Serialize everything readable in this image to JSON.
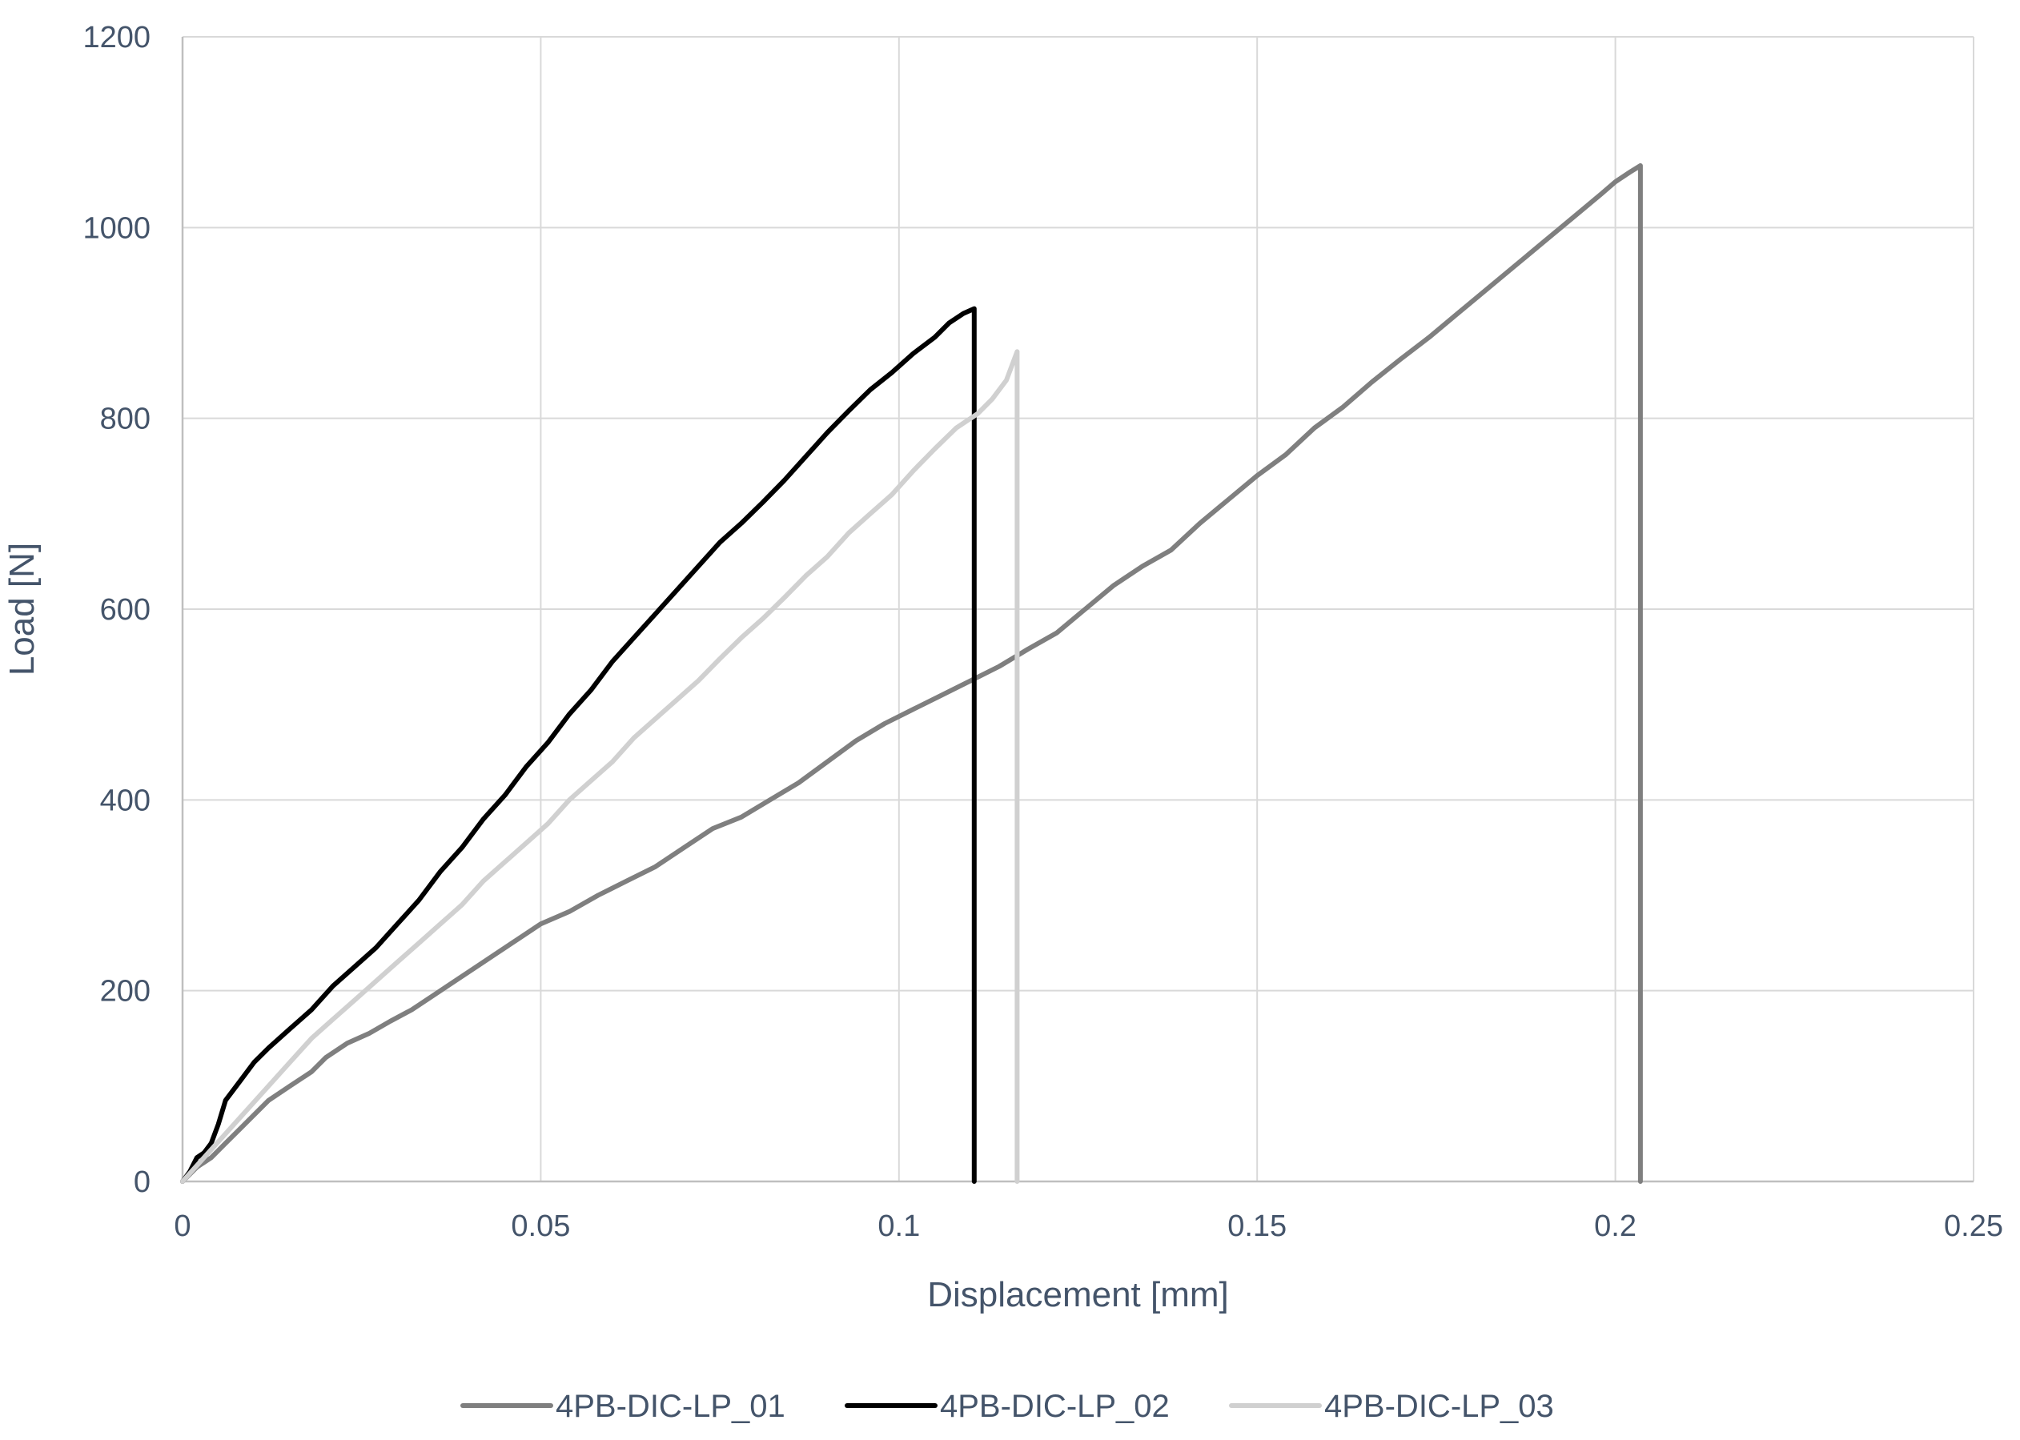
{
  "chart_data": {
    "type": "line",
    "xlabel": "Displacement [mm]",
    "ylabel": "Load [N]",
    "xlim": [
      0,
      0.25
    ],
    "ylim": [
      0,
      1200
    ],
    "xticks": [
      0,
      0.05,
      0.1,
      0.15,
      0.2,
      0.25
    ],
    "xtick_labels": [
      "0",
      "0.05",
      "0.1",
      "0.15",
      "0.2",
      "0.25"
    ],
    "yticks": [
      0,
      200,
      400,
      600,
      800,
      1000,
      1200
    ],
    "ytick_labels": [
      "0",
      "200",
      "400",
      "600",
      "800",
      "1000",
      "1200"
    ],
    "grid": true,
    "legend_position": "bottom",
    "series": [
      {
        "name": "4PB-DIC-LP_01",
        "color": "#7f7f7f",
        "x": [
          0,
          0.002,
          0.004,
          0.006,
          0.008,
          0.01,
          0.012,
          0.015,
          0.018,
          0.02,
          0.023,
          0.026,
          0.029,
          0.032,
          0.035,
          0.038,
          0.041,
          0.044,
          0.047,
          0.05,
          0.054,
          0.058,
          0.062,
          0.066,
          0.07,
          0.074,
          0.078,
          0.082,
          0.086,
          0.09,
          0.094,
          0.098,
          0.102,
          0.106,
          0.11,
          0.114,
          0.118,
          0.122,
          0.126,
          0.13,
          0.134,
          0.138,
          0.142,
          0.146,
          0.15,
          0.154,
          0.158,
          0.162,
          0.166,
          0.17,
          0.174,
          0.178,
          0.182,
          0.186,
          0.19,
          0.194,
          0.198,
          0.2,
          0.202,
          0.2035,
          0.2035
        ],
        "y": [
          0,
          15,
          25,
          40,
          55,
          70,
          85,
          100,
          115,
          130,
          145,
          155,
          168,
          180,
          195,
          210,
          225,
          240,
          255,
          270,
          283,
          300,
          315,
          330,
          350,
          370,
          382,
          400,
          418,
          440,
          462,
          480,
          495,
          510,
          525,
          540,
          558,
          575,
          600,
          625,
          645,
          662,
          690,
          715,
          740,
          762,
          790,
          812,
          838,
          862,
          885,
          910,
          935,
          960,
          985,
          1010,
          1035,
          1048,
          1058,
          1065,
          0
        ]
      },
      {
        "name": "4PB-DIC-LP_02",
        "color": "#000000",
        "x": [
          0,
          0.001,
          0.002,
          0.003,
          0.004,
          0.005,
          0.006,
          0.008,
          0.01,
          0.012,
          0.015,
          0.018,
          0.021,
          0.024,
          0.027,
          0.03,
          0.033,
          0.036,
          0.039,
          0.042,
          0.045,
          0.048,
          0.051,
          0.054,
          0.057,
          0.06,
          0.063,
          0.066,
          0.069,
          0.072,
          0.075,
          0.078,
          0.081,
          0.084,
          0.087,
          0.09,
          0.093,
          0.096,
          0.099,
          0.102,
          0.105,
          0.107,
          0.109,
          0.1105,
          0.1105
        ],
        "y": [
          0,
          10,
          25,
          30,
          40,
          60,
          85,
          105,
          125,
          140,
          160,
          180,
          205,
          225,
          245,
          270,
          295,
          325,
          350,
          380,
          405,
          435,
          460,
          490,
          515,
          545,
          570,
          595,
          620,
          645,
          670,
          690,
          712,
          735,
          760,
          785,
          808,
          830,
          848,
          868,
          885,
          900,
          910,
          915,
          0
        ]
      },
      {
        "name": "4PB-DIC-LP_03",
        "color": "#d0d0d0",
        "x": [
          0,
          0.003,
          0.006,
          0.009,
          0.012,
          0.015,
          0.018,
          0.021,
          0.024,
          0.027,
          0.03,
          0.033,
          0.036,
          0.039,
          0.042,
          0.045,
          0.048,
          0.051,
          0.054,
          0.057,
          0.06,
          0.063,
          0.066,
          0.069,
          0.072,
          0.075,
          0.078,
          0.081,
          0.084,
          0.087,
          0.09,
          0.093,
          0.096,
          0.099,
          0.102,
          0.105,
          0.108,
          0.111,
          0.113,
          0.115,
          0.1165,
          0.1165
        ],
        "y": [
          0,
          25,
          50,
          75,
          100,
          125,
          150,
          170,
          190,
          210,
          230,
          250,
          270,
          290,
          315,
          335,
          355,
          375,
          400,
          420,
          440,
          465,
          485,
          505,
          525,
          548,
          570,
          590,
          612,
          635,
          655,
          680,
          700,
          720,
          745,
          768,
          790,
          805,
          820,
          840,
          870,
          0
        ]
      }
    ]
  }
}
